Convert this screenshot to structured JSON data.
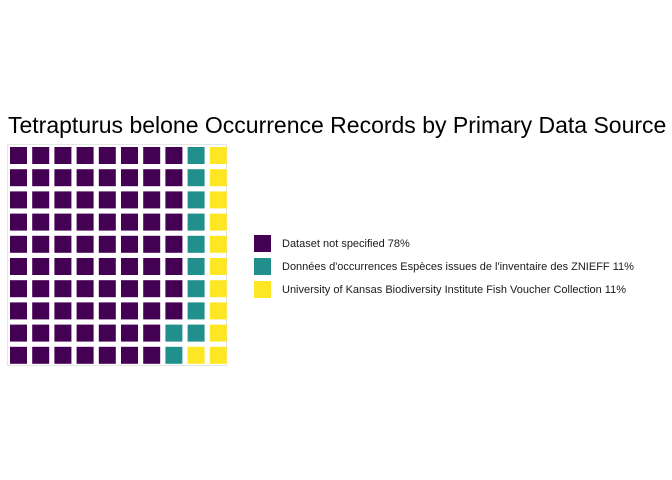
{
  "chart_data": {
    "type": "waffle",
    "title": "Tetrapturus belone Occurrence Records by Primary Data Source",
    "rows": 10,
    "columns": 10,
    "categories": [
      "Dataset not specified 78%",
      "Données d'occurrences Espèces issues de l'inventaire des ZNIEFF 11%",
      "University of Kansas Biodiversity Institute Fish Voucher Collection 11%"
    ],
    "values": [
      78,
      11,
      11
    ],
    "colors": [
      "#440154",
      "#21908C",
      "#FDE725"
    ],
    "legend_position": "right",
    "grid": false
  }
}
